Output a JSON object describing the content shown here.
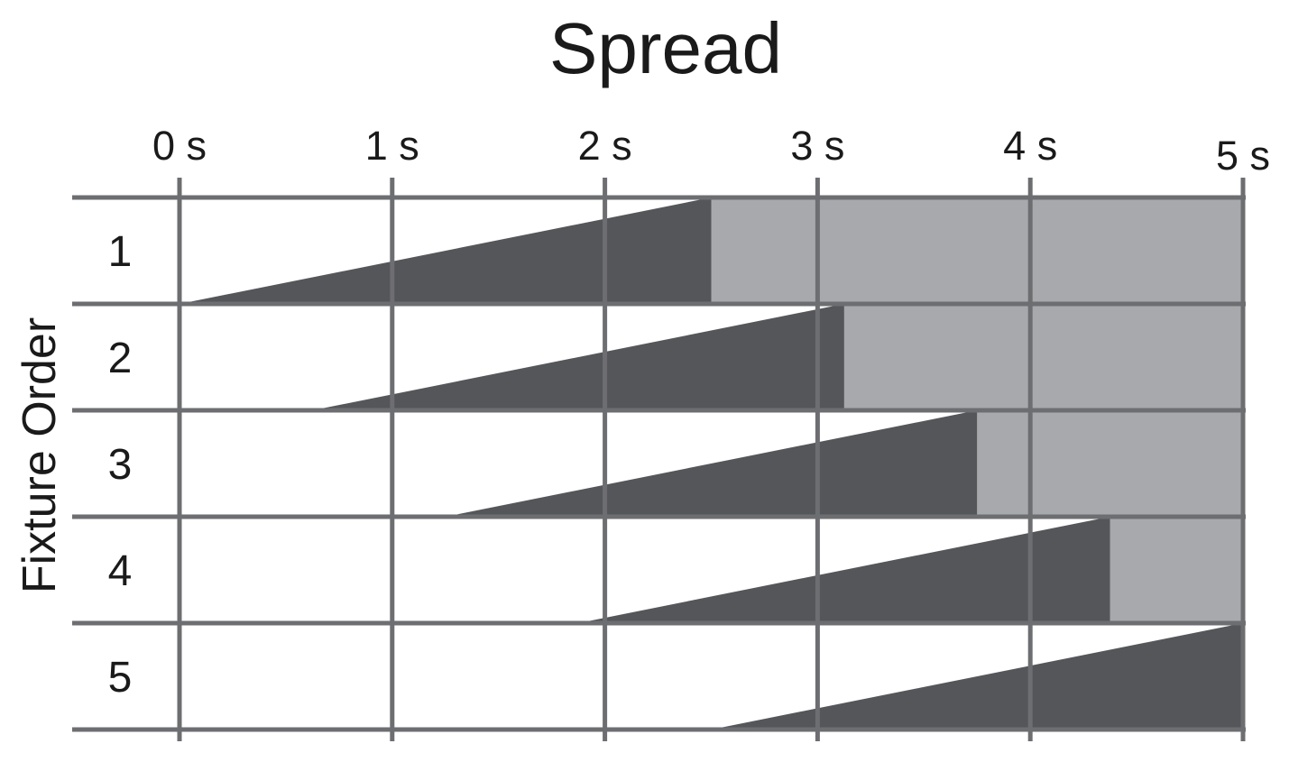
{
  "chart_data": {
    "type": "gantt",
    "mark": "ramp-triangle-with-hold-bar",
    "title": "Spread",
    "ylabel": "Fixture Order",
    "xlabel": "",
    "x_unit": "s",
    "xlim": [
      0,
      5
    ],
    "x_ticks": [
      {
        "value": 0,
        "label": "0 s"
      },
      {
        "value": 1,
        "label": "1 s"
      },
      {
        "value": 2,
        "label": "2 s"
      },
      {
        "value": 3,
        "label": "3 s"
      },
      {
        "value": 4,
        "label": "4 s"
      },
      {
        "value": 5,
        "label": "5 s"
      }
    ],
    "categories": [
      "1",
      "2",
      "3",
      "4",
      "5"
    ],
    "fade_duration_s": 2.5,
    "spread_offset_s": 0.625,
    "series": [
      {
        "fixture": "1",
        "ramp_start_s": 0,
        "ramp_end_s": 2.5,
        "hold_start_s": 2.5,
        "hold_end_s": 5
      },
      {
        "fixture": "2",
        "ramp_start_s": 0.625,
        "ramp_end_s": 3.125,
        "hold_start_s": 3.125,
        "hold_end_s": 5
      },
      {
        "fixture": "3",
        "ramp_start_s": 1.25,
        "ramp_end_s": 3.75,
        "hold_start_s": 3.75,
        "hold_end_s": 5
      },
      {
        "fixture": "4",
        "ramp_start_s": 1.875,
        "ramp_end_s": 4.375,
        "hold_start_s": 4.375,
        "hold_end_s": 5
      },
      {
        "fixture": "5",
        "ramp_start_s": 2.5,
        "ramp_end_s": 5,
        "hold_start_s": 5,
        "hold_end_s": 5
      }
    ],
    "legend": "none",
    "grid": "both"
  },
  "colors": {
    "ramp_fill": "#555659",
    "hold_fill": "#a7a9ac",
    "grid_line": "#6d6e71",
    "text": "#1a1a1a",
    "background": "#ffffff"
  }
}
